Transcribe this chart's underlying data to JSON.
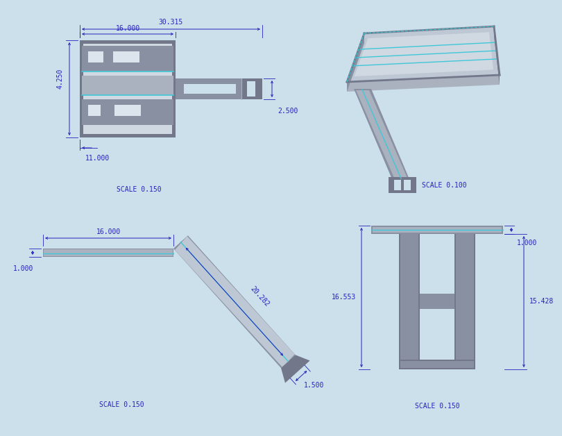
{
  "bg_color": "#cce0ec",
  "dim_color": "#2222bb",
  "part_dark": "#72788a",
  "part_mid": "#8890a2",
  "part_light": "#aab2c0",
  "part_lighter": "#bec8d4",
  "part_lightest": "#d0d8e2",
  "cyan_line": "#40c8d8",
  "white_hole": "#dce4ee",
  "dim_font": 7.0,
  "scale_font": 7.0,
  "views": {
    "top_left_label": "SCALE 0.150",
    "top_right_label": "SCALE 0.100",
    "bot_left_label": "SCALE 0.150",
    "bot_right_label": "SCALE 0.150"
  },
  "dims": {
    "tl_outer": "30.315",
    "tl_inner": "16.000",
    "tl_height": "4.250",
    "tl_bottom": "11.000",
    "tl_arm_h": "2.500",
    "bl_width": "16.000",
    "bl_thick": "1.000",
    "bl_length": "20.282",
    "bl_tip": "1.500",
    "br_top": "1.000",
    "br_left": "16.553",
    "br_right": "15.428"
  }
}
